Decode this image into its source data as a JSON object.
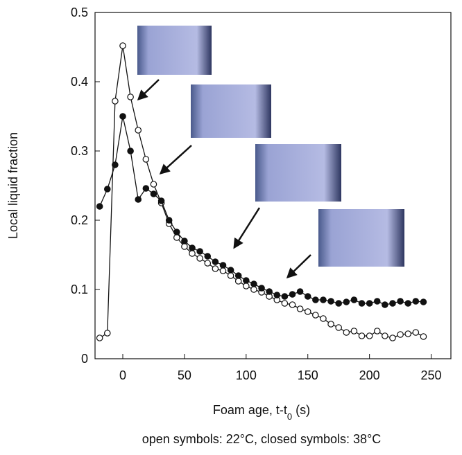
{
  "chart_data": {
    "type": "line",
    "ylabel": "Local liquid fraction",
    "xlabel": {
      "main": "Foam age, t-t",
      "sub": "0",
      "unit": "(s)"
    },
    "caption": "open symbols: 22°C, closed symbols: 38°C",
    "x": [
      -18.75,
      -12.5,
      -6.25,
      0,
      6.25,
      12.5,
      18.75,
      25,
      31.25,
      37.5,
      43.75,
      50,
      56.25,
      62.5,
      68.75,
      75,
      81.25,
      87.5,
      93.75,
      100,
      106.25,
      112.5,
      118.75,
      125,
      131.25,
      137.5,
      143.75,
      150,
      156.25,
      162.5,
      168.75,
      175,
      181.25,
      187.5,
      193.75,
      200,
      206.25,
      212.5,
      218.75,
      225,
      231.25,
      237.5,
      243.75
    ],
    "series": [
      {
        "marker": "open",
        "color": "#111111",
        "values": [
          0.03,
          0.037,
          0.372,
          0.452,
          0.378,
          0.33,
          0.288,
          0.252,
          0.225,
          0.195,
          0.175,
          0.162,
          0.152,
          0.145,
          0.138,
          0.13,
          0.127,
          0.12,
          0.112,
          0.105,
          0.1,
          0.096,
          0.09,
          0.085,
          0.08,
          0.078,
          0.072,
          0.068,
          0.063,
          0.058,
          0.05,
          0.045,
          0.038,
          0.04,
          0.033,
          0.033,
          0.04,
          0.033,
          0.03,
          0.035,
          0.036,
          0.038,
          0.032
        ]
      },
      {
        "marker": "closed",
        "color": "#111111",
        "values": [
          0.22,
          0.245,
          0.28,
          0.35,
          0.3,
          0.23,
          0.246,
          0.238,
          0.228,
          0.2,
          0.183,
          0.17,
          0.16,
          0.155,
          0.148,
          0.14,
          0.135,
          0.128,
          0.12,
          0.113,
          0.108,
          0.102,
          0.097,
          0.092,
          0.09,
          0.093,
          0.097,
          0.09,
          0.085,
          0.085,
          0.083,
          0.08,
          0.082,
          0.085,
          0.08,
          0.08,
          0.083,
          0.078,
          0.08,
          0.083,
          0.08,
          0.083,
          0.082
        ]
      }
    ],
    "xlim": [
      -22.5,
      266
    ],
    "ylim": [
      0,
      0.5
    ],
    "xticks": [
      0,
      50,
      100,
      150,
      200,
      250
    ],
    "yticks": [
      0,
      0.1,
      0.2,
      0.3,
      0.4,
      0.5
    ]
  }
}
